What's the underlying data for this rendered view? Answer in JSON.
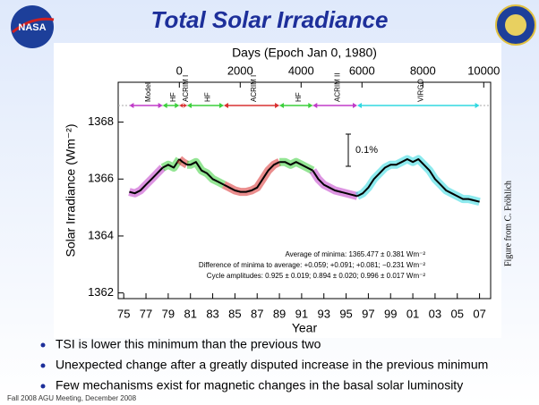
{
  "logo_left": "NASA",
  "chart_data": {
    "type": "line",
    "title": "Total Solar Irradiance",
    "x2_label": "Days (Epoch Jan 0, 1980)",
    "x_label": "Year",
    "y_label": "Solar Irradiance (Wm⁻²)",
    "scale_note": "0.1%",
    "stats": [
      "Average of minima:  1365.477 ± 0.381 Wm⁻²",
      "Difference of minima to average: +0.059; +0.091; +0.081; −0.231 Wm⁻²",
      "Cycle amplitudes:  0.925 ± 0.019; 0.894 ± 0.020; 0.996 ± 0.017 Wm⁻²"
    ],
    "credit": "Figure from C. Fröhlich",
    "xlim": [
      1974.5,
      2008
    ],
    "x2lim": [
      -2009,
      10227
    ],
    "ylim": [
      1361.8,
      1369.4
    ],
    "xticks": [
      {
        "value": 1975,
        "label": "75"
      },
      {
        "value": 1977,
        "label": "77"
      },
      {
        "value": 1979,
        "label": "79"
      },
      {
        "value": 1981,
        "label": "81"
      },
      {
        "value": 1983,
        "label": "83"
      },
      {
        "value": 1985,
        "label": "85"
      },
      {
        "value": 1987,
        "label": "87"
      },
      {
        "value": 1989,
        "label": "89"
      },
      {
        "value": 1991,
        "label": "91"
      },
      {
        "value": 1993,
        "label": "93"
      },
      {
        "value": 1995,
        "label": "95"
      },
      {
        "value": 1997,
        "label": "97"
      },
      {
        "value": 1999,
        "label": "99"
      },
      {
        "value": 2001,
        "label": "01"
      },
      {
        "value": 2003,
        "label": "03"
      },
      {
        "value": 2005,
        "label": "05"
      },
      {
        "value": 2007,
        "label": "07"
      }
    ],
    "x2ticks": [
      0,
      2000,
      4000,
      6000,
      8000,
      10000
    ],
    "yticks": [
      1362,
      1364,
      1366,
      1368
    ],
    "series": [
      {
        "name": "Model",
        "color": "#c03cc8",
        "x": [
          1975.5,
          1976,
          1976.5,
          1977,
          1977.5,
          1978,
          1978.5
        ],
        "values": [
          1365.55,
          1365.5,
          1365.6,
          1365.8,
          1366.0,
          1366.2,
          1366.4
        ]
      },
      {
        "name": "HF",
        "color": "#3ccf3c",
        "x": [
          1978.5,
          1979,
          1979.5,
          1980
        ],
        "values": [
          1366.4,
          1366.5,
          1366.4,
          1366.7
        ]
      },
      {
        "name": "ACRIM I",
        "color": "#d83030",
        "x": [
          1980,
          1980.3,
          1980.7
        ],
        "values": [
          1366.7,
          1366.6,
          1366.5
        ]
      },
      {
        "name": "HF",
        "color": "#3ccf3c",
        "x": [
          1980.7,
          1981,
          1981.5,
          1982,
          1982.5,
          1983,
          1983.5,
          1984
        ],
        "values": [
          1366.5,
          1366.5,
          1366.6,
          1366.3,
          1366.2,
          1366.0,
          1365.9,
          1365.8
        ]
      },
      {
        "name": "ACRIM I",
        "color": "#d83030",
        "x": [
          1984,
          1984.5,
          1985,
          1985.5,
          1986,
          1986.5,
          1987,
          1987.5,
          1988,
          1988.5,
          1989
        ],
        "values": [
          1365.8,
          1365.7,
          1365.6,
          1365.55,
          1365.55,
          1365.6,
          1365.7,
          1366.0,
          1366.3,
          1366.5,
          1366.6
        ]
      },
      {
        "name": "HF",
        "color": "#3ccf3c",
        "x": [
          1989,
          1989.5,
          1990,
          1990.5,
          1991,
          1991.5,
          1992
        ],
        "values": [
          1366.6,
          1366.6,
          1366.5,
          1366.6,
          1366.5,
          1366.4,
          1366.3
        ]
      },
      {
        "name": "ACRIM II",
        "color": "#c03cc8",
        "x": [
          1992,
          1992.5,
          1993,
          1993.5,
          1994,
          1994.5,
          1995,
          1995.5,
          1996
        ],
        "values": [
          1366.3,
          1366.0,
          1365.8,
          1365.7,
          1365.6,
          1365.55,
          1365.5,
          1365.45,
          1365.4
        ]
      },
      {
        "name": "VIRGO",
        "color": "#30d8e0",
        "x": [
          1996,
          1996.5,
          1997,
          1997.5,
          1998,
          1998.5,
          1999,
          1999.5,
          2000,
          2000.5,
          2001,
          2001.5,
          2002,
          2002.5,
          2003,
          2003.5,
          2004,
          2004.5,
          2005,
          2005.5,
          2006,
          2006.5,
          2007
        ],
        "values": [
          1365.4,
          1365.5,
          1365.7,
          1366.0,
          1366.2,
          1366.4,
          1366.5,
          1366.5,
          1366.6,
          1366.7,
          1366.6,
          1366.7,
          1366.5,
          1366.3,
          1366.0,
          1365.8,
          1365.6,
          1365.5,
          1365.4,
          1365.3,
          1365.3,
          1365.25,
          1365.2
        ]
      }
    ]
  },
  "bullets": [
    "TSI is lower this minimum than the previous two",
    "Unexpected change after a greatly disputed increase in the previous minimum",
    "Few mechanisms exist for magnetic changes in the basal solar luminosity"
  ],
  "footer": "Fall 2008 AGU Meeting, December 2008"
}
